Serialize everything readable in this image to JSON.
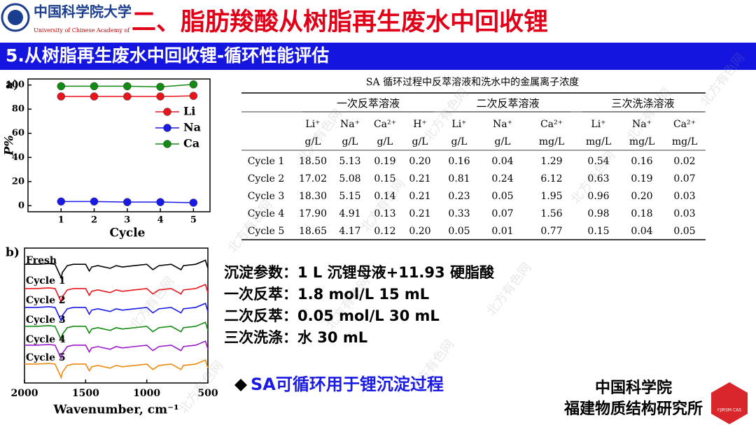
{
  "header": {
    "logo_text": "中国科学院大学",
    "logo_subtitle": "University of Chinese Academy of",
    "title": "二、脂肪羧酸从树脂再生废水中回收锂"
  },
  "section_title": "5.从树脂再生废水中回收锂-循环性能评估",
  "watermark": "北方有色网",
  "chart_data": [
    {
      "type": "line",
      "panel_label": "a)",
      "x_label": "Cycle",
      "y_label": "P%",
      "x": [
        1,
        2,
        3,
        4,
        5
      ],
      "xlim": [
        0,
        5.5
      ],
      "xticks": [
        1,
        2,
        3,
        4,
        5
      ],
      "ylim": [
        -5,
        105
      ],
      "yticks": [
        0,
        20,
        40,
        60,
        80,
        100
      ],
      "legend": "right",
      "series": [
        {
          "name": "Li",
          "color": "#e8141b",
          "values": [
            90.5,
            90.5,
            90.5,
            90.5,
            91
          ]
        },
        {
          "name": "Na",
          "color": "#1a1ae6",
          "values": [
            3.5,
            3.5,
            3,
            3,
            2.5
          ]
        },
        {
          "name": "Ca",
          "color": "#138a13",
          "values": [
            99,
            99,
            99,
            98.5,
            100.5
          ]
        }
      ]
    },
    {
      "type": "spectrum",
      "panel_label": "b)",
      "x_label": "Wavenumber, cm⁻¹",
      "x": [
        2000,
        1900,
        1800,
        1750,
        1720,
        1700,
        1690,
        1650,
        1600,
        1500,
        1470,
        1450,
        1400,
        1300,
        1250,
        1200,
        1100,
        1000,
        950,
        900,
        800,
        720,
        700,
        600,
        520,
        500
      ],
      "xlim": [
        2000,
        500
      ],
      "xticks": [
        2000,
        1500,
        1000,
        500
      ],
      "ylim": [
        0,
        100
      ],
      "legend": "inside-left",
      "series": [
        {
          "name": "Fresh",
          "color": "#000000",
          "values": [
            88,
            88,
            88.5,
            88,
            82,
            78,
            82,
            87,
            88,
            88,
            83,
            86,
            87,
            85,
            87,
            86,
            87,
            88,
            84,
            87,
            88,
            84,
            87,
            88,
            91,
            85
          ]
        },
        {
          "name": "Cycle 1",
          "color": "#e8141b",
          "values": [
            70,
            70,
            70.5,
            70,
            64,
            60,
            64,
            69,
            70,
            70,
            65,
            68,
            69,
            67,
            69,
            68,
            69,
            70,
            66,
            69,
            70,
            66,
            69,
            70,
            73,
            67
          ]
        },
        {
          "name": "Cycle 2",
          "color": "#1a1ae6",
          "values": [
            56,
            56,
            56.5,
            56,
            50,
            46,
            50,
            55,
            56,
            56,
            51,
            54,
            55,
            53,
            55,
            54,
            55,
            56,
            52,
            55,
            56,
            52,
            55,
            56,
            59,
            53
          ]
        },
        {
          "name": "Cycle 3",
          "color": "#138a13",
          "values": [
            42,
            42,
            42.5,
            42,
            36,
            32,
            36,
            41,
            42,
            42,
            37,
            40,
            41,
            39,
            41,
            40,
            41,
            42,
            38,
            41,
            42,
            38,
            41,
            42,
            45,
            39
          ]
        },
        {
          "name": "Cycle 4",
          "color": "#9b19c9",
          "values": [
            28,
            28,
            28.5,
            28,
            22,
            18,
            22,
            27,
            28,
            28,
            23,
            26,
            27,
            25,
            27,
            26,
            27,
            28,
            24,
            27,
            28,
            24,
            27,
            28,
            31,
            25
          ]
        },
        {
          "name": "Cycle 5",
          "color": "#f08a0c",
          "values": [
            14,
            14,
            14.5,
            14,
            8,
            4,
            8,
            13,
            14,
            14,
            9,
            12,
            13,
            11,
            13,
            12,
            13,
            14,
            10,
            13,
            14,
            10,
            13,
            14,
            17,
            11
          ]
        }
      ]
    }
  ],
  "table": {
    "title": "SA 循环过程中反萃溶液和洗水中的金属离子浓度",
    "groups": [
      "一次反萃溶液",
      "二次反萃溶液",
      "三次洗涤溶液"
    ],
    "ions": [
      "Li⁺",
      "Na⁺",
      "Ca²⁺",
      "H⁺",
      "Li⁺",
      "Na⁺",
      "Ca²⁺",
      "Li⁺",
      "Na⁺",
      "Ca²⁺"
    ],
    "units": [
      "g/L",
      "g/L",
      "g/L",
      "g/L",
      "g/L",
      "g/L",
      "mg/L",
      "mg/L",
      "mg/L",
      "mg/L"
    ],
    "rows": [
      [
        "Cycle 1",
        "18.50",
        "5.13",
        "0.19",
        "0.20",
        "0.16",
        "0.04",
        "1.29",
        "0.54",
        "0.16",
        "0.02"
      ],
      [
        "Cycle 2",
        "17.02",
        "5.08",
        "0.15",
        "0.21",
        "0.81",
        "0.24",
        "6.12",
        "0.63",
        "0.19",
        "0.07"
      ],
      [
        "Cycle 3",
        "18.30",
        "5.15",
        "0.14",
        "0.21",
        "0.23",
        "0.05",
        "1.95",
        "0.96",
        "0.20",
        "0.03"
      ],
      [
        "Cycle 4",
        "17.90",
        "4.91",
        "0.13",
        "0.21",
        "0.33",
        "0.07",
        "1.56",
        "0.98",
        "0.18",
        "0.03"
      ],
      [
        "Cycle 5",
        "18.65",
        "4.17",
        "0.12",
        "0.20",
        "0.05",
        "0.01",
        "0.77",
        "0.15",
        "0.04",
        "0.05"
      ]
    ]
  },
  "conditions": [
    "沉淀参数：1 L 沉锂母液+11.93 硬脂酸",
    "一次反萃：1.8 mol/L 15 mL",
    "二次反萃：0.05 mol/L 30 mL",
    "三次洗涤：水 30 mL"
  ],
  "conclusion": "SA可循环用于锂沉淀过程",
  "footer": {
    "line1": "中国科学院",
    "line2": "福建物质结构研究所",
    "logo_text": "FJIRSM CAS"
  }
}
